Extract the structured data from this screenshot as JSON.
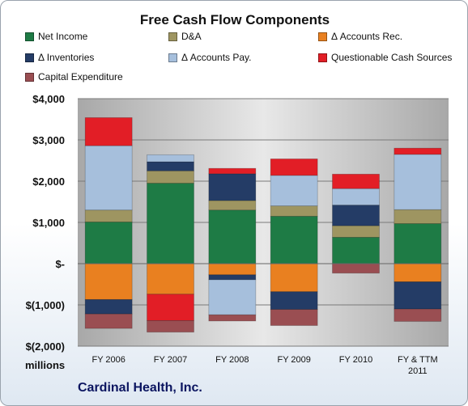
{
  "chart_data": {
    "type": "bar",
    "stacked": true,
    "title": "Free Cash Flow Components",
    "units_label": "millions",
    "company": "Cardinal Health, Inc.",
    "categories": [
      "FY 2006",
      "FY 2007",
      "FY 2008",
      "FY 2009",
      "FY 2010",
      "FY & TTM 2011"
    ],
    "ylim": [
      -2000,
      4000
    ],
    "yticks": [
      4000,
      3000,
      2000,
      1000,
      0,
      -1000,
      -2000
    ],
    "ytick_labels": [
      "$4,000",
      "$3,000",
      "$2,000",
      "$1,000",
      "$-",
      "$(1,000)",
      "$(2,000)"
    ],
    "grid": true,
    "legend_position": "top",
    "series": [
      {
        "name": "Net Income",
        "color": "#1e7b45",
        "values": [
          1010,
          1950,
          1300,
          1150,
          640,
          970
        ]
      },
      {
        "name": "D&A",
        "color": "#9e9561",
        "values": [
          290,
          300,
          230,
          250,
          280,
          340
        ]
      },
      {
        "name": "Δ Accounts Rec.",
        "color": "#e98020",
        "values": [
          -870,
          -740,
          -270,
          -680,
          0,
          -440
        ]
      },
      {
        "name": "Δ Inventories",
        "color": "#243c66",
        "values": [
          -350,
          0,
          650,
          -430,
          500,
          -660
        ]
      },
      {
        "name": "Δ Accounts Pay.",
        "color": "#a6bfdc",
        "values": [
          1560,
          170,
          -850,
          740,
          400,
          1340
        ]
      },
      {
        "name": "Questionable Cash Sources",
        "color": "#e21e26",
        "values": [
          680,
          0,
          130,
          400,
          350,
          150
        ]
      },
      {
        "name": "Capital Expenditure",
        "color": "#9a4e52",
        "values": [
          -350,
          -280,
          -150,
          -390,
          -230,
          -300
        ]
      }
    ],
    "extra_segments": [
      {
        "series": "Δ Inventories",
        "category": "FY 2007",
        "value": 220
      },
      {
        "series": "Questionable Cash Sources",
        "category": "FY 2007",
        "value": -640
      },
      {
        "series": "Δ Inventories",
        "category": "FY 2008",
        "value": -120
      }
    ]
  }
}
